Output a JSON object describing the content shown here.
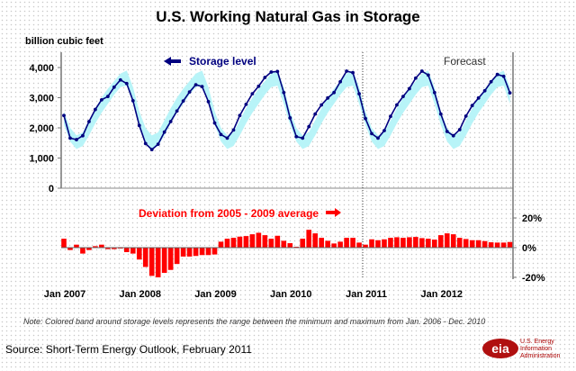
{
  "chart_data": {
    "type": "line",
    "title": "U.S. Working Natural Gas in Storage",
    "ylabel": "billion cubic feet",
    "ylim": [
      0,
      4500
    ],
    "yticks": [
      "4,000",
      "3,000",
      "2,000",
      "1,000",
      "0"
    ],
    "ytick_values": [
      4000,
      3000,
      2000,
      1000,
      0
    ],
    "y2lim": [
      -20,
      20
    ],
    "y2ticks": [
      "20%",
      "0%",
      "-20%"
    ],
    "y2tick_values": [
      20,
      0,
      -20
    ],
    "xticks": [
      "Jan 2007",
      "Jan 2008",
      "Jan 2009",
      "Jan 2010",
      "Jan 2011",
      "Jan 2012"
    ],
    "xtick_month_index": [
      0,
      12,
      24,
      36,
      48,
      60
    ],
    "months": 72,
    "forecast_start_index": 48,
    "grid": true,
    "series": [
      {
        "name": "Storage level",
        "type": "line",
        "color": "#000080",
        "values": [
          2410,
          1660,
          1610,
          1740,
          2210,
          2610,
          2930,
          3040,
          3350,
          3590,
          3470,
          2900,
          2080,
          1480,
          1280,
          1460,
          1860,
          2210,
          2560,
          2890,
          3190,
          3430,
          3370,
          2870,
          2160,
          1780,
          1660,
          1930,
          2410,
          2780,
          3130,
          3380,
          3670,
          3850,
          3870,
          3170,
          2330,
          1710,
          1660,
          2040,
          2460,
          2760,
          2990,
          3170,
          3530,
          3880,
          3830,
          3130,
          2310,
          1810,
          1660,
          1910,
          2380,
          2760,
          3040,
          3300,
          3650,
          3880,
          3750,
          3170,
          2460,
          1880,
          1740,
          1940,
          2390,
          2740,
          2990,
          3230,
          3530,
          3770,
          3710,
          3160
        ]
      },
      {
        "name": "Min-max range band (by calendar month)",
        "type": "band",
        "color": "#b8f4f8",
        "low": [
          2100,
          1550,
          1300,
          1400,
          1750,
          2150,
          2500,
          2800,
          3100,
          3350,
          3400,
          2800
        ],
        "high": [
          2550,
          2000,
          1750,
          1850,
          2250,
          2650,
          3000,
          3300,
          3550,
          3800,
          3900,
          3350
        ]
      },
      {
        "name": "Deviation from 2005 - 2009 average",
        "type": "bar",
        "axis": "right",
        "color": "#ff0000",
        "values": [
          6,
          -1.6,
          2,
          -4,
          -1.6,
          1,
          2,
          -1,
          -1,
          -0.6,
          -3,
          -4,
          -8,
          -13,
          -19,
          -20,
          -17,
          -15,
          -11,
          -6,
          -6,
          -5.6,
          -5,
          -5,
          -4.6,
          4,
          6,
          6.6,
          7.4,
          7.8,
          9,
          10,
          8.4,
          6,
          8,
          4.6,
          3,
          0.6,
          6,
          12,
          9.6,
          6.6,
          4.6,
          2.8,
          4,
          6.6,
          6.6,
          3.4,
          2,
          5.6,
          5,
          5.6,
          6.6,
          7,
          6.6,
          7,
          7.2,
          6.4,
          6,
          5.4,
          8.4,
          9.6,
          9,
          6.6,
          5.8,
          5,
          5,
          4.4,
          3.6,
          3.4,
          3.4,
          3.8
        ]
      }
    ],
    "annotations": {
      "storage_label": "Storage level",
      "deviation_label": "Deviation from 2005 - 2009 average",
      "forecast_label": "Forecast"
    }
  },
  "note": "Note:  Colored band around storage levels represents the range between the minimum and maximum from Jan. 2006 - Dec. 2010",
  "source": "Source: Short-Term Energy Outlook, February 2011",
  "logo": {
    "mark": "eia",
    "lines": [
      "U.S. Energy",
      "Information",
      "Administration"
    ]
  }
}
